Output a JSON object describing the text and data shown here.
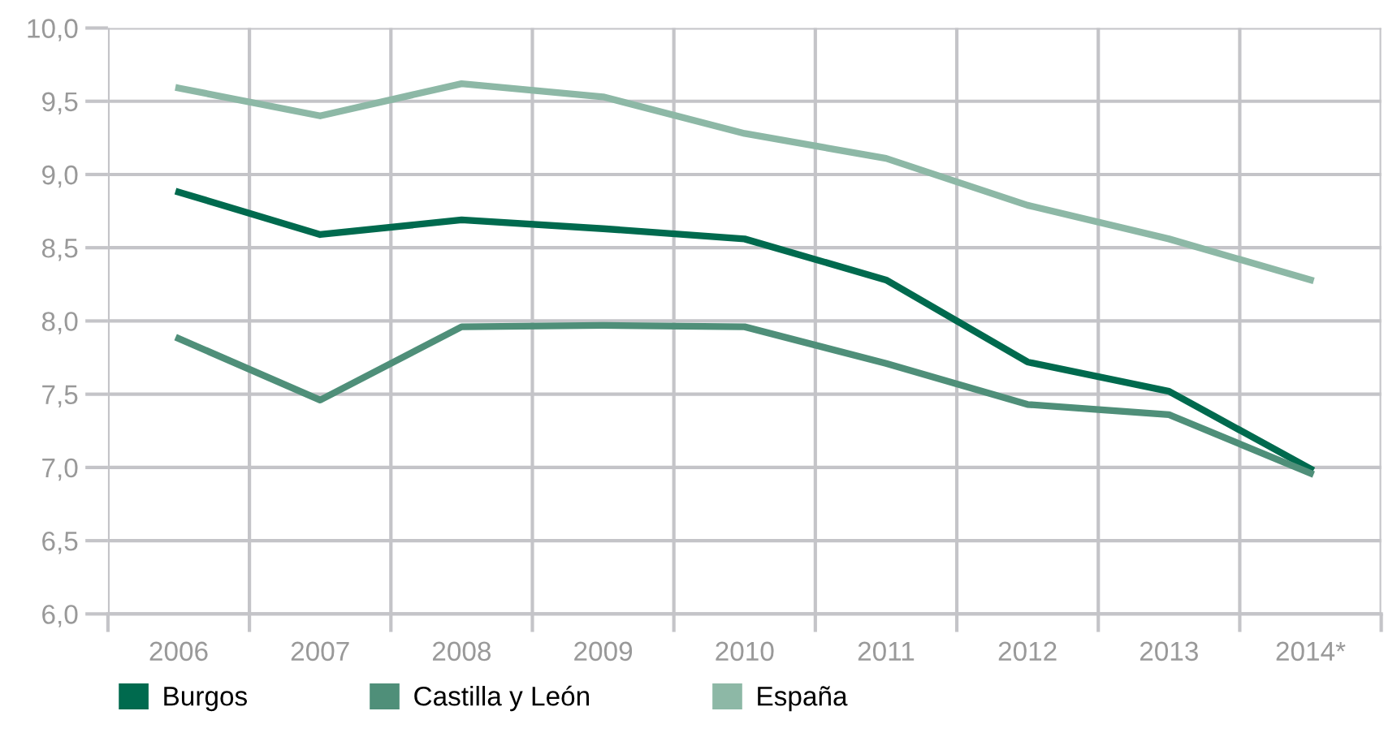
{
  "chart_data": {
    "type": "line",
    "categories": [
      "2006",
      "2007",
      "2008",
      "2009",
      "2010",
      "2011",
      "2012",
      "2013",
      "2014*"
    ],
    "series": [
      {
        "name": "Burgos",
        "color": "#006a4e",
        "values": [
          8.88,
          8.59,
          8.69,
          8.63,
          8.56,
          8.28,
          7.72,
          7.52,
          6.99
        ]
      },
      {
        "name": "Castilla y León",
        "color": "#4f8f79",
        "values": [
          7.88,
          7.46,
          7.96,
          7.97,
          7.96,
          7.71,
          7.43,
          7.36,
          6.96
        ]
      },
      {
        "name": "España",
        "color": "#8db8a6",
        "values": [
          9.59,
          9.4,
          9.62,
          9.53,
          9.28,
          9.11,
          8.79,
          8.56,
          8.28
        ]
      }
    ],
    "ylim": [
      6.0,
      10.0
    ],
    "yticks": [
      {
        "value": 6.0,
        "label": "6,0"
      },
      {
        "value": 6.5,
        "label": "6,5"
      },
      {
        "value": 7.0,
        "label": "7,0"
      },
      {
        "value": 7.5,
        "label": "7,5"
      },
      {
        "value": 8.0,
        "label": "8,0"
      },
      {
        "value": 8.5,
        "label": "8,5"
      },
      {
        "value": 9.0,
        "label": "9,0"
      },
      {
        "value": 9.5,
        "label": "9,5"
      },
      {
        "value": 10.0,
        "label": "10,0"
      }
    ],
    "grid": true,
    "legend": "bottom left",
    "marker": "none",
    "line_style": "solid"
  }
}
